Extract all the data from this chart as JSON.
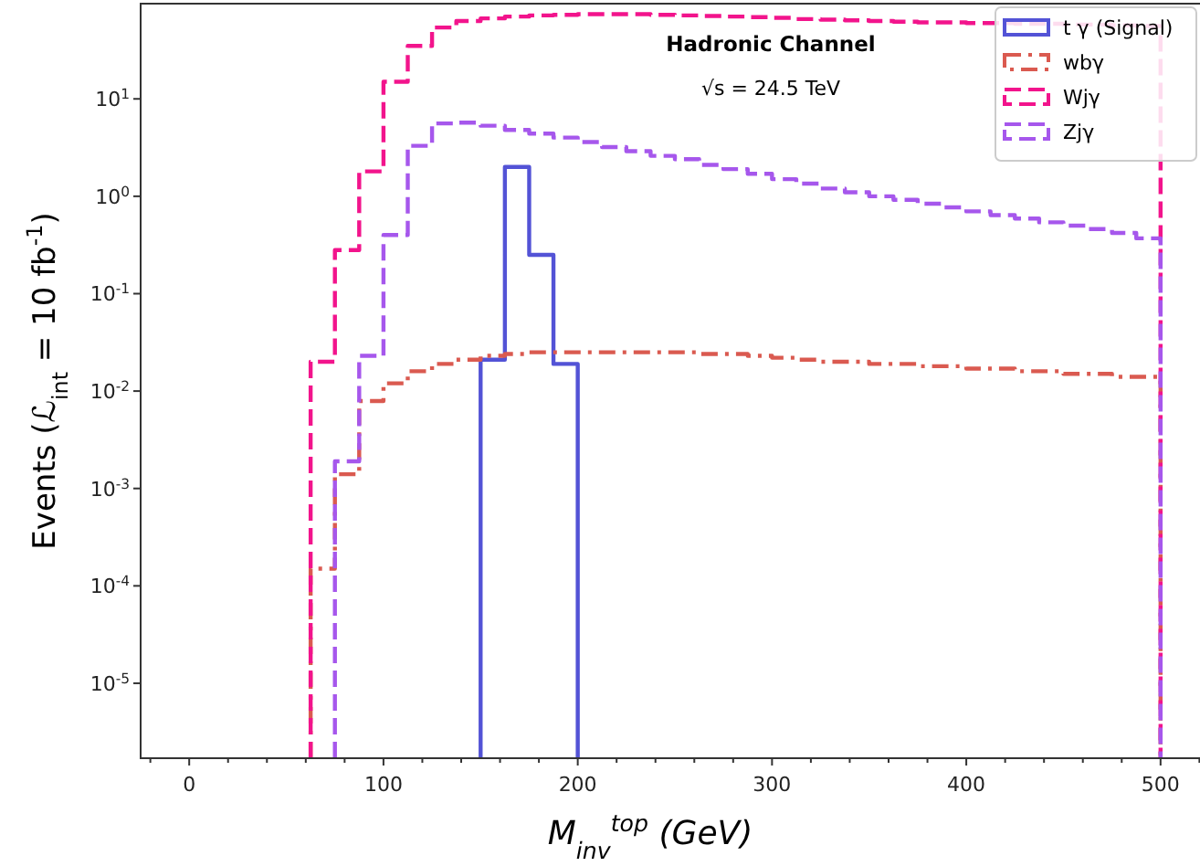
{
  "chart_data": {
    "type": "histogram",
    "title": "Hadronic Channel",
    "subtitle": "√s = 24.5 TeV",
    "xlabel": "M$_{inv}$$^{top}$ (GeV)",
    "ylabel": "Events (ℒ$_{int}$ = 10 fb$^{-1}$)",
    "bins": [
      62.5,
      75,
      87.5,
      100,
      112.5,
      125,
      137.5,
      150,
      162.5,
      175,
      187.5,
      200,
      212.5,
      225,
      237.5,
      250,
      262.5,
      275,
      287.5,
      300,
      312.5,
      325,
      337.5,
      350,
      362.5,
      375,
      387.5,
      400,
      412.5,
      425,
      437.5,
      450,
      462.5,
      475,
      487.5,
      500
    ],
    "series": [
      {
        "name": "t γ (Signal)",
        "color": "#5353d6",
        "line_style": "solid",
        "bins": [
          150,
          162.5,
          175,
          187.5,
          200
        ],
        "values": [
          0.021,
          2.0,
          0.25,
          0.019
        ]
      },
      {
        "name": "wbγ",
        "color": "#da5a50",
        "line_style": "dashdot",
        "values": [
          0.00015,
          0.0014,
          0.0079,
          0.012,
          0.016,
          0.019,
          0.021,
          0.023,
          0.024,
          0.025,
          0.025,
          0.025,
          0.025,
          0.025,
          0.025,
          0.025,
          0.024,
          0.024,
          0.023,
          0.022,
          0.021,
          0.02,
          0.02,
          0.019,
          0.019,
          0.018,
          0.018,
          0.017,
          0.017,
          0.016,
          0.016,
          0.015,
          0.015,
          0.014,
          0.014
        ]
      },
      {
        "name": "Wjγ",
        "color": "#f2148c",
        "line_style": "dashed",
        "values": [
          0.02,
          0.28,
          1.8,
          15,
          35,
          54,
          63,
          67,
          70,
          72,
          73,
          74,
          74,
          74,
          73,
          72,
          71,
          70,
          69,
          68,
          66,
          65,
          64,
          63,
          62,
          61,
          61,
          60,
          60,
          59,
          59,
          58,
          58,
          57,
          56
        ]
      },
      {
        "name": "Zjγ",
        "color": "#a657ec",
        "line_style": "dashed",
        "bins": [
          75,
          87.5,
          100,
          112.5,
          125,
          137.5,
          150,
          162.5,
          175,
          187.5,
          200,
          212.5,
          225,
          237.5,
          250,
          262.5,
          275,
          287.5,
          300,
          312.5,
          325,
          337.5,
          350,
          362.5,
          375,
          387.5,
          400,
          412.5,
          425,
          437.5,
          450,
          462.5,
          475,
          487.5,
          500
        ],
        "values": [
          0.0019,
          0.023,
          0.4,
          3.3,
          5.6,
          5.7,
          5.3,
          4.8,
          4.4,
          4.0,
          3.6,
          3.2,
          2.9,
          2.6,
          2.4,
          2.1,
          1.9,
          1.7,
          1.5,
          1.35,
          1.2,
          1.1,
          1.0,
          0.92,
          0.84,
          0.77,
          0.7,
          0.64,
          0.59,
          0.54,
          0.5,
          0.46,
          0.42,
          0.37
        ]
      }
    ],
    "xlim": [
      -25,
      525
    ],
    "ylim": [
      1.7e-06,
      95
    ],
    "log": "y",
    "legend": "top right",
    "xticks": [
      {
        "value": -20,
        "label": null
      },
      0,
      {
        "value": 20,
        "label": null
      },
      {
        "value": 40,
        "label": null
      },
      {
        "value": 60,
        "label": null
      },
      {
        "value": 80,
        "label": null
      },
      100,
      {
        "value": 120,
        "label": null
      },
      {
        "value": 140,
        "label": null
      },
      {
        "value": 160,
        "label": null
      },
      {
        "value": 180,
        "label": null
      },
      200,
      {
        "value": 220,
        "label": null
      },
      {
        "value": 240,
        "label": null
      },
      {
        "value": 260,
        "label": null
      },
      {
        "value": 280,
        "label": null
      },
      300,
      {
        "value": 320,
        "label": null
      },
      {
        "value": 340,
        "label": null
      },
      {
        "value": 360,
        "label": null
      },
      {
        "value": 380,
        "label": null
      },
      400,
      {
        "value": 420,
        "label": null
      },
      {
        "value": 440,
        "label": null
      },
      {
        "value": 460,
        "label": null
      },
      {
        "value": 480,
        "label": null
      },
      500,
      {
        "value": 520,
        "label": null
      }
    ],
    "yticks": [
      {
        "value": 1e-05,
        "label": "10$^{-5}$"
      },
      {
        "value": 0.0001,
        "label": "10$^{-4}$"
      },
      {
        "value": 0.001,
        "label": "10$^{-3}$"
      },
      {
        "value": 0.01,
        "label": "10$^{-2}$"
      },
      {
        "value": 0.1,
        "label": "10$^{-1}$"
      },
      {
        "value": 1,
        "label": "10$^{0}$"
      },
      {
        "value": 10,
        "label": "10$^{1}$"
      }
    ]
  }
}
